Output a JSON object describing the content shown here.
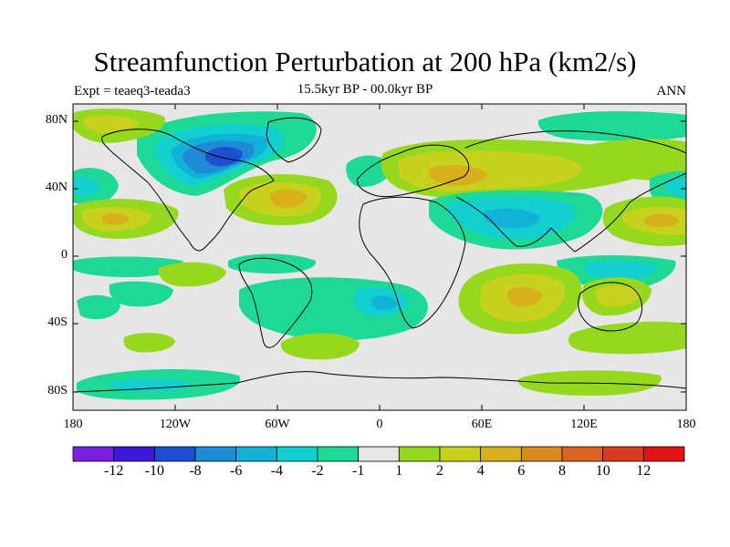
{
  "title": "Streamfunction Perturbation at 200 hPa (km2/s)",
  "subtitle_center": "15.5kyr BP - 00.0kyr BP",
  "subtitle_left": "Expt = teaeq3-teada3",
  "subtitle_right": "ANN",
  "axes": {
    "lat_labels": [
      "80N",
      "40N",
      "0",
      "40S",
      "80S"
    ],
    "lon_labels": [
      "180",
      "120W",
      "60W",
      "0",
      "60E",
      "120E",
      "180"
    ]
  },
  "colorbar": {
    "labels": [
      "-12",
      "-10",
      "-8",
      "-6",
      "-4",
      "-2",
      "-1",
      "1",
      "2",
      "4",
      "6",
      "8",
      "10",
      "12"
    ],
    "colors": [
      "#7a1ee0",
      "#3d18d8",
      "#1e4fd0",
      "#1e8ad8",
      "#12b2d8",
      "#12d0d0",
      "#1ed896",
      "#e6e6e6",
      "#96d81e",
      "#c8d21e",
      "#d8b01e",
      "#d88a1e",
      "#d8641e",
      "#d83c1e",
      "#e01414"
    ]
  },
  "chart_data": {
    "type": "contour-map",
    "title": "Streamfunction Perturbation at 200 hPa (km2/s)",
    "variable": "streamfunction perturbation",
    "units": "km2/s",
    "level": "200 hPa",
    "period": "15.5kyr BP - 00.0kyr BP",
    "experiment": "teaeq3-teada3",
    "season": "ANN",
    "lon_range": [
      -180,
      180
    ],
    "lat_range": [
      -90,
      90
    ],
    "contour_levels": [
      -12,
      -10,
      -8,
      -6,
      -4,
      -2,
      -1,
      1,
      2,
      4,
      6,
      8,
      10,
      12
    ],
    "anomalies": [
      {
        "name": "N America low",
        "lon": -100,
        "lat": 55,
        "value": -8
      },
      {
        "name": "N Atlantic high",
        "lon": -45,
        "lat": 35,
        "value": 4
      },
      {
        "name": "Eurasia high",
        "lon": 40,
        "lat": 48,
        "value": 4
      },
      {
        "name": "Asia low",
        "lon": 80,
        "lat": 28,
        "value": -2
      },
      {
        "name": "S Indian high",
        "lon": 85,
        "lat": -22,
        "value": 4
      },
      {
        "name": "E Pacific low",
        "lon": -175,
        "lat": 40,
        "value": -2
      },
      {
        "name": "Pacific high",
        "lon": -165,
        "lat": 22,
        "value": 2
      },
      {
        "name": "W Pacific high",
        "lon": 160,
        "lat": 20,
        "value": 2
      },
      {
        "name": "S America low",
        "lon": -40,
        "lat": -28,
        "value": -2
      }
    ]
  }
}
